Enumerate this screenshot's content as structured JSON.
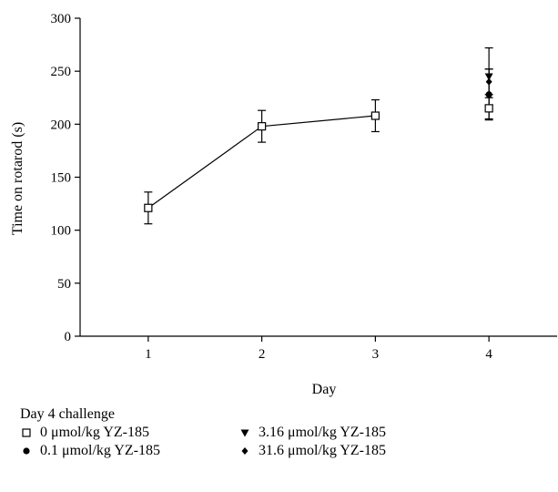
{
  "chart_data": {
    "type": "scatter",
    "xlabel": "Day",
    "ylabel": "Time on rotarod (s)",
    "ylim": [
      0,
      300
    ],
    "xlim": [
      0.4,
      4.6
    ],
    "yticks": [
      0,
      50,
      100,
      150,
      200,
      250,
      300
    ],
    "xticks": [
      1,
      2,
      3,
      4
    ],
    "grid": false,
    "legend_position": "bottom",
    "legend_title": "Day 4 challenge",
    "series": [
      {
        "name": "0 μmol/kg YZ-185",
        "marker": "open-square",
        "connected": true,
        "points": [
          {
            "x": 1,
            "y": 121,
            "err": 15
          },
          {
            "x": 2,
            "y": 198,
            "err": 15
          },
          {
            "x": 3,
            "y": 208,
            "err": 15
          },
          {
            "x": 4,
            "y": 215,
            "err": 10
          }
        ]
      },
      {
        "name": "0.1 μmol/kg YZ-185",
        "marker": "filled-circle",
        "connected": false,
        "points": [
          {
            "x": 4,
            "y": 228,
            "err": 24
          }
        ]
      },
      {
        "name": "3.16 μmol/kg YZ-185",
        "marker": "filled-triangle-down",
        "connected": false,
        "points": [
          {
            "x": 4,
            "y": 245,
            "err": 27
          }
        ]
      },
      {
        "name": "31.6 μmol/kg YZ-185",
        "marker": "filled-diamond",
        "connected": false,
        "points": [
          {
            "x": 4,
            "y": 240,
            "err": 12
          }
        ]
      }
    ]
  }
}
